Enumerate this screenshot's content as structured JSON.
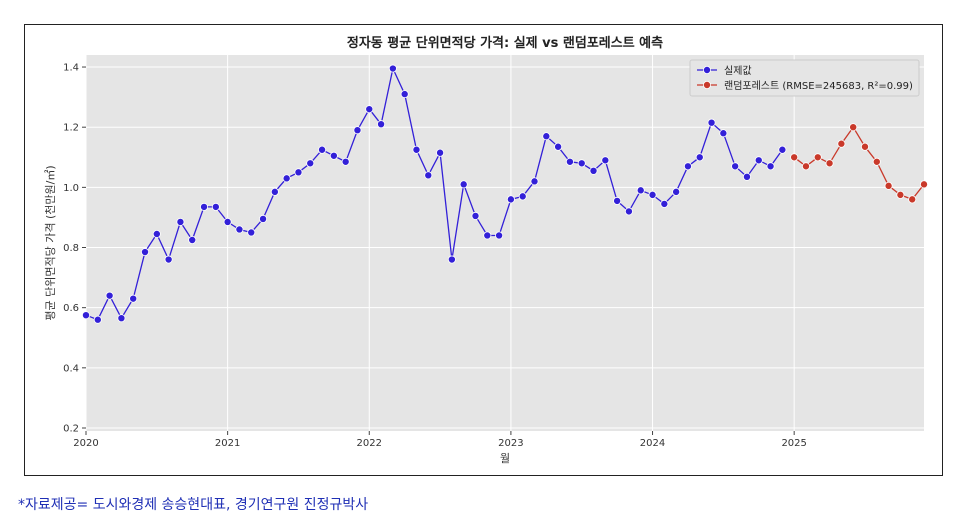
{
  "chart_data": {
    "type": "line",
    "title": "정자동 평균 단위면적당 가격: 실제 vs 랜덤포레스트 예측",
    "xlabel": "월",
    "ylabel": "평균 단위면적당 가격 (천만원/㎡)",
    "xlim": [
      "2020-01",
      "2025-12"
    ],
    "ylim": [
      0.19,
      1.44
    ],
    "grid": true,
    "legend_position": "top-right",
    "x_ticks": [
      {
        "date": "2020-01",
        "label": "2020"
      },
      {
        "date": "2021-01",
        "label": "2021"
      },
      {
        "date": "2022-01",
        "label": "2022"
      },
      {
        "date": "2023-01",
        "label": "2023"
      },
      {
        "date": "2024-01",
        "label": "2024"
      },
      {
        "date": "2025-01",
        "label": "2025"
      }
    ],
    "y_ticks": [
      0.2,
      0.4,
      0.6,
      0.8,
      1.0,
      1.2,
      1.4
    ],
    "y_tick_labels": [
      "0.2",
      "0.4",
      "0.6",
      "0.8",
      "1.0",
      "1.2",
      "1.4"
    ],
    "series": [
      {
        "name": "실제값",
        "color": "#3320d8",
        "x": [
          "2020-01",
          "2020-02",
          "2020-03",
          "2020-04",
          "2020-05",
          "2020-06",
          "2020-07",
          "2020-08",
          "2020-09",
          "2020-10",
          "2020-11",
          "2020-12",
          "2021-01",
          "2021-02",
          "2021-03",
          "2021-04",
          "2021-05",
          "2021-06",
          "2021-07",
          "2021-08",
          "2021-09",
          "2021-10",
          "2021-11",
          "2021-12",
          "2022-01",
          "2022-02",
          "2022-03",
          "2022-04",
          "2022-05",
          "2022-06",
          "2022-07",
          "2022-08",
          "2022-09",
          "2022-10",
          "2022-11",
          "2022-12",
          "2023-01",
          "2023-02",
          "2023-03",
          "2023-04",
          "2023-05",
          "2023-06",
          "2023-07",
          "2023-08",
          "2023-09",
          "2023-10",
          "2023-11",
          "2023-12",
          "2024-01",
          "2024-02",
          "2024-03",
          "2024-04",
          "2024-05",
          "2024-06",
          "2024-07",
          "2024-08",
          "2024-09",
          "2024-10",
          "2024-11",
          "2024-12"
        ],
        "values": [
          0.575,
          0.56,
          0.64,
          0.565,
          0.63,
          0.785,
          0.845,
          0.76,
          0.885,
          0.825,
          0.935,
          0.935,
          0.885,
          0.86,
          0.85,
          0.895,
          0.985,
          1.03,
          1.05,
          1.08,
          1.125,
          1.105,
          1.085,
          1.19,
          1.26,
          1.21,
          1.395,
          1.31,
          1.125,
          1.04,
          1.115,
          0.76,
          1.01,
          0.905,
          0.84,
          0.84,
          0.96,
          0.97,
          1.02,
          1.17,
          1.135,
          1.085,
          1.08,
          1.055,
          1.09,
          0.955,
          0.92,
          0.99,
          0.975,
          0.945,
          0.985,
          1.07,
          1.1,
          1.215,
          1.18,
          1.07,
          1.035,
          1.09,
          1.07,
          1.125
        ]
      },
      {
        "name": "랜덤포레스트 (RMSE=245683, R²=0.99)",
        "color": "#c9392a",
        "x": [
          "2025-01",
          "2025-02",
          "2025-03",
          "2025-04",
          "2025-05",
          "2025-06",
          "2025-07",
          "2025-08",
          "2025-09",
          "2025-10",
          "2025-11",
          "2025-12"
        ],
        "values": [
          1.1,
          1.07,
          1.1,
          1.08,
          1.145,
          1.2,
          1.135,
          1.085,
          1.005,
          0.975,
          0.96,
          1.01
        ]
      }
    ]
  },
  "footnote": "*자료제공= 도시와경제 송승현대표, 경기연구원 진정규박사"
}
